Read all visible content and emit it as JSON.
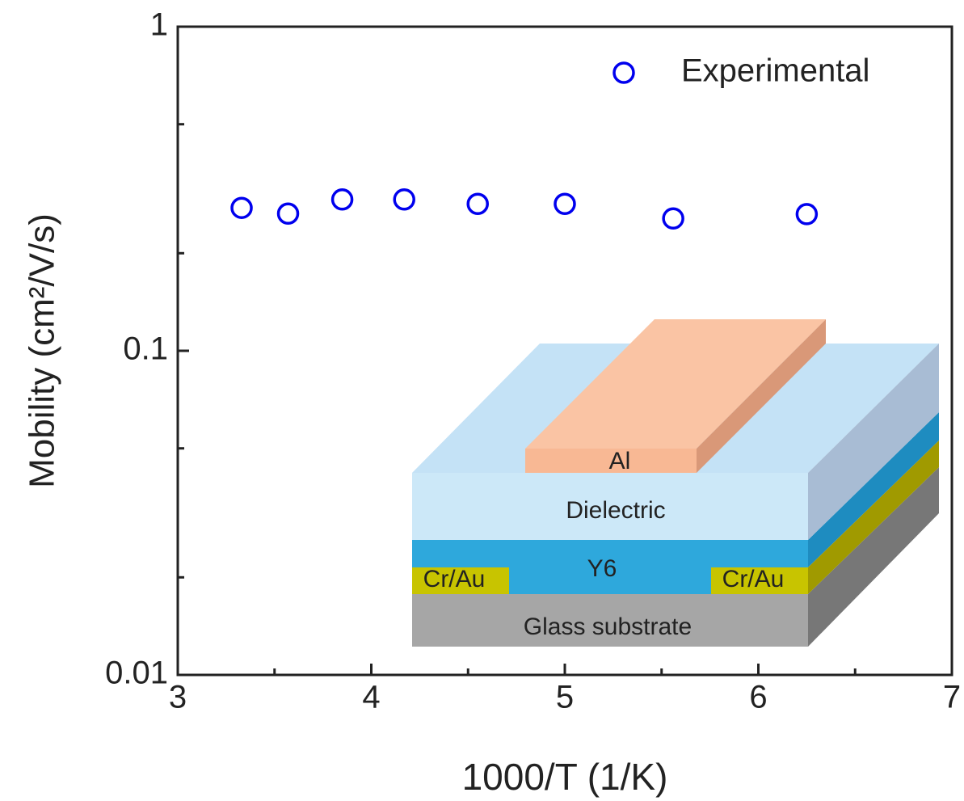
{
  "chart_data": {
    "type": "scatter",
    "xlabel": "1000/T (1/K)",
    "ylabel": "Mobility (cm²/V/s)",
    "series": [
      {
        "name": "Experimental",
        "color": "#0000ee",
        "x": [
          3.33,
          3.57,
          3.85,
          4.17,
          4.55,
          5.0,
          5.56,
          6.25
        ],
        "values": [
          0.276,
          0.265,
          0.293,
          0.293,
          0.284,
          0.284,
          0.256,
          0.264
        ]
      }
    ],
    "xlim": [
      3,
      7
    ],
    "xticks": [
      3,
      4,
      5,
      6,
      7
    ],
    "xminorticks": [
      3.5,
      4.5,
      5.5,
      6.5
    ],
    "ylim": [
      0.01,
      1
    ],
    "yticks": [
      0.01,
      0.1,
      1
    ],
    "yminorticks": [
      0.02,
      0.05,
      0.2,
      0.5
    ],
    "log_y": true,
    "legend": "top-right",
    "annotations": [
      "Al",
      "Dielectric",
      "Y6",
      "Cr/Au",
      "Cr/Au",
      "Glass substrate"
    ]
  }
}
